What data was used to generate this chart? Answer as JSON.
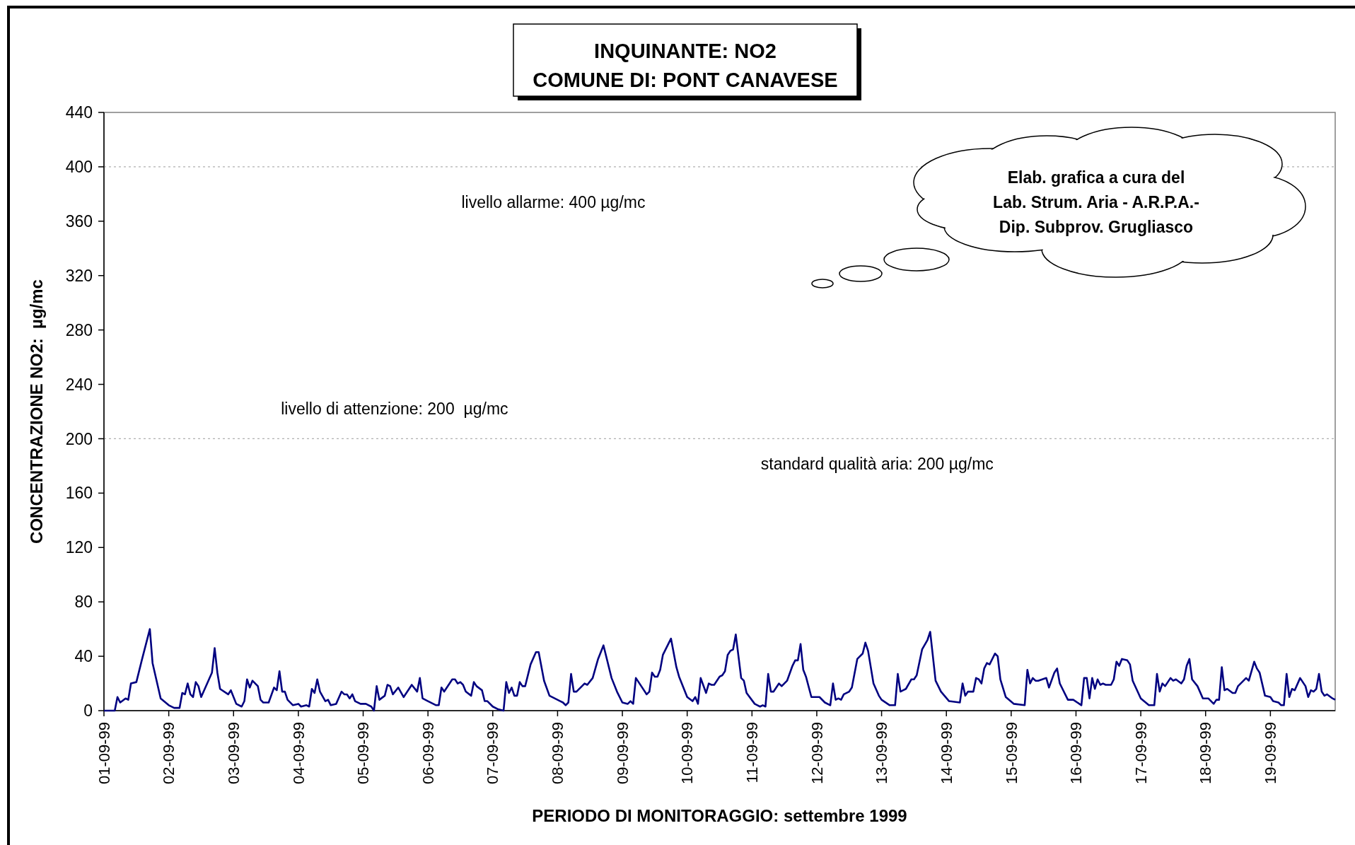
{
  "chart_data": {
    "type": "line",
    "title": "INQUINANTE: NO2\nCOMUNE DI: PONT CANAVESE",
    "xlabel": "PERIODO DI MONITORAGGIO: settembre 1999",
    "ylabel": "CONCENTRAZIONE NO2:  µg/mc",
    "xlim": [
      "1999-09-01",
      "1999-09-20"
    ],
    "ylim": [
      0,
      440
    ],
    "yticks": [
      0,
      40,
      80,
      120,
      160,
      200,
      240,
      280,
      320,
      360,
      400,
      440
    ],
    "xticks": [
      {
        "value": "1999-09-01",
        "label": "01-09-99"
      },
      {
        "value": "1999-09-02",
        "label": "02-09-99"
      },
      {
        "value": "1999-09-03",
        "label": "03-09-99"
      },
      {
        "value": "1999-09-04",
        "label": "04-09-99"
      },
      {
        "value": "1999-09-05",
        "label": "05-09-99"
      },
      {
        "value": "1999-09-06",
        "label": "06-09-99"
      },
      {
        "value": "1999-09-07",
        "label": "07-09-99"
      },
      {
        "value": "1999-09-08",
        "label": "08-09-99"
      },
      {
        "value": "1999-09-09",
        "label": "09-09-99"
      },
      {
        "value": "1999-09-10",
        "label": "10-09-99"
      },
      {
        "value": "1999-09-11",
        "label": "11-09-99"
      },
      {
        "value": "1999-09-12",
        "label": "12-09-99"
      },
      {
        "value": "1999-09-13",
        "label": "13-09-99"
      },
      {
        "value": "1999-09-14",
        "label": "14-09-99"
      },
      {
        "value": "1999-09-15",
        "label": "15-09-99"
      },
      {
        "value": "1999-09-16",
        "label": "16-09-99"
      },
      {
        "value": "1999-09-17",
        "label": "17-09-99"
      },
      {
        "value": "1999-09-18",
        "label": "18-09-99"
      },
      {
        "value": "1999-09-19",
        "label": "19-09-99"
      }
    ],
    "ref_lines": [
      {
        "axis": "y",
        "value": 400,
        "label": "livello allarme: 400 µg/mc",
        "color": "#b0b0b0",
        "line_style": "dotted"
      },
      {
        "axis": "y",
        "value": 200,
        "label": "livello di attenzione: 200  µg/mc",
        "color": "#b0b0b0",
        "line_style": "dotted"
      }
    ],
    "annotations": [
      "Elab. grafica a cura del\nLab. Strum. Aria - A.R.P.A.-\nDip. Subprov. Grugliasco",
      {
        "text": "standard qualità aria: 200 µg/mc",
        "y": 200
      }
    ],
    "series": [
      {
        "color": "#000080",
        "x": [
          "1999-09-01T00:00",
          "1999-09-01T04:00",
          "1999-09-01T05:00",
          "1999-09-01T06:00",
          "1999-09-01T08:00",
          "1999-09-01T09:00",
          "1999-09-01T10:00",
          "1999-09-01T12:00",
          "1999-09-01T14:00",
          "1999-09-01T17:00",
          "1999-09-01T18:00",
          "1999-09-01T21:00",
          "1999-09-02T00:00",
          "1999-09-02T02:00",
          "1999-09-02T04:00",
          "1999-09-02T05:00",
          "1999-09-02T06:00",
          "1999-09-02T07:00",
          "1999-09-02T08:00",
          "1999-09-02T09:00",
          "1999-09-02T10:00",
          "1999-09-02T11:00",
          "1999-09-02T12:00",
          "1999-09-02T16:00",
          "1999-09-02T17:00",
          "1999-09-02T18:00",
          "1999-09-02T19:00",
          "1999-09-02T22:00",
          "1999-09-02T23:00",
          "1999-09-03T01:00",
          "1999-09-03T03:00",
          "1999-09-03T04:00",
          "1999-09-03T05:00",
          "1999-09-03T06:00",
          "1999-09-03T07:00",
          "1999-09-03T09:00",
          "1999-09-03T10:00",
          "1999-09-03T11:00",
          "1999-09-03T13:00",
          "1999-09-03T15:00",
          "1999-09-03T16:00",
          "1999-09-03T17:00",
          "1999-09-03T18:00",
          "1999-09-03T19:00",
          "1999-09-03T20:00",
          "1999-09-03T22:00",
          "1999-09-04T00:00",
          "1999-09-04T01:00",
          "1999-09-04T03:00",
          "1999-09-04T04:00",
          "1999-09-04T05:00",
          "1999-09-04T06:00",
          "1999-09-04T07:00",
          "1999-09-04T08:00",
          "1999-09-04T10:00",
          "1999-09-04T11:00",
          "1999-09-04T12:00",
          "1999-09-04T14:00",
          "1999-09-04T16:00",
          "1999-09-04T17:00",
          "1999-09-04T18:00",
          "1999-09-04T19:00",
          "1999-09-04T20:00",
          "1999-09-04T21:00",
          "1999-09-04T23:00",
          "1999-09-05T01:00",
          "1999-09-05T03:00",
          "1999-09-05T04:00",
          "1999-09-05T05:00",
          "1999-09-05T06:00",
          "1999-09-05T08:00",
          "1999-09-05T09:00",
          "1999-09-05T10:00",
          "1999-09-05T11:00",
          "1999-09-05T13:00",
          "1999-09-05T15:00",
          "1999-09-05T18:00",
          "1999-09-05T20:00",
          "1999-09-05T21:00",
          "1999-09-05T22:00",
          "1999-09-06T00:00",
          "1999-09-06T03:00",
          "1999-09-06T04:00",
          "1999-09-06T05:00",
          "1999-09-06T06:00",
          "1999-09-06T09:00",
          "1999-09-06T10:00",
          "1999-09-06T11:00",
          "1999-09-06T12:00",
          "1999-09-06T13:00",
          "1999-09-06T14:00",
          "1999-09-06T16:00",
          "1999-09-06T17:00",
          "1999-09-06T18:00",
          "1999-09-06T20:00",
          "1999-09-06T21:00",
          "1999-09-06T22:00",
          "1999-09-07T00:00",
          "1999-09-07T02:00",
          "1999-09-07T04:00",
          "1999-09-07T05:00",
          "1999-09-07T06:00",
          "1999-09-07T07:00",
          "1999-09-07T08:00",
          "1999-09-07T09:00",
          "1999-09-07T10:00",
          "1999-09-07T11:00",
          "1999-09-07T12:00",
          "1999-09-07T14:00",
          "1999-09-07T16:00",
          "1999-09-07T17:00",
          "1999-09-07T19:00",
          "1999-09-07T21:00",
          "1999-09-08T01:00",
          "1999-09-08T02:00",
          "1999-09-08T03:00",
          "1999-09-08T04:00",
          "1999-09-08T05:00",
          "1999-09-08T06:00",
          "1999-09-08T07:00",
          "1999-09-08T10:00",
          "1999-09-08T11:00",
          "1999-09-08T13:00",
          "1999-09-08T14:00",
          "1999-09-08T15:00",
          "1999-09-08T17:00",
          "1999-09-08T20:00",
          "1999-09-08T22:00",
          "1999-09-09T00:00",
          "1999-09-09T02:00",
          "1999-09-09T03:00",
          "1999-09-09T04:00",
          "1999-09-09T05:00",
          "1999-09-09T07:00",
          "1999-09-09T09:00",
          "1999-09-09T10:00",
          "1999-09-09T11:00",
          "1999-09-09T12:00",
          "1999-09-09T13:00",
          "1999-09-09T14:00",
          "1999-09-09T15:00",
          "1999-09-09T18:00",
          "1999-09-09T20:00",
          "1999-09-09T21:00",
          "1999-09-10T00:00",
          "1999-09-10T02:00",
          "1999-09-10T03:00",
          "1999-09-10T04:00",
          "1999-09-10T05:00",
          "1999-09-10T07:00",
          "1999-09-10T08:00",
          "1999-09-10T09:00",
          "1999-09-10T10:00",
          "1999-09-10T12:00",
          "1999-09-10T13:00",
          "1999-09-10T14:00",
          "1999-09-10T15:00",
          "1999-09-10T16:00",
          "1999-09-10T17:00",
          "1999-09-10T18:00",
          "1999-09-10T20:00",
          "1999-09-10T21:00",
          "1999-09-10T22:00",
          "1999-09-11T01:00",
          "1999-09-11T02:00",
          "1999-09-11T03:00",
          "1999-09-11T04:00",
          "1999-09-11T05:00",
          "1999-09-11T06:00",
          "1999-09-11T07:00",
          "1999-09-11T08:00",
          "1999-09-11T10:00",
          "1999-09-11T11:00",
          "1999-09-11T13:00",
          "1999-09-11T15:00",
          "1999-09-11T16:00",
          "1999-09-11T17:00",
          "1999-09-11T18:00",
          "1999-09-11T19:00",
          "1999-09-11T20:00",
          "1999-09-11T22:00",
          "1999-09-12T01:00",
          "1999-09-12T03:00",
          "1999-09-12T05:00",
          "1999-09-12T06:00",
          "1999-09-12T07:00",
          "1999-09-12T08:00",
          "1999-09-12T09:00",
          "1999-09-12T10:00",
          "1999-09-12T12:00",
          "1999-09-12T13:00",
          "1999-09-12T15:00",
          "1999-09-12T17:00",
          "1999-09-12T18:00",
          "1999-09-12T19:00",
          "1999-09-12T21:00",
          "1999-09-12T23:00",
          "1999-09-13T00:00",
          "1999-09-13T03:00",
          "1999-09-13T05:00",
          "1999-09-13T06:00",
          "1999-09-13T07:00",
          "1999-09-13T08:00",
          "1999-09-13T09:00",
          "1999-09-13T11:00",
          "1999-09-13T12:00",
          "1999-09-13T13:00",
          "1999-09-13T15:00",
          "1999-09-13T17:00",
          "1999-09-13T18:00",
          "1999-09-13T20:00",
          "1999-09-13T22:00",
          "1999-09-14T01:00",
          "1999-09-14T05:00",
          "1999-09-14T06:00",
          "1999-09-14T07:00",
          "1999-09-14T08:00",
          "1999-09-14T10:00",
          "1999-09-14T11:00",
          "1999-09-14T12:00",
          "1999-09-14T13:00",
          "1999-09-14T14:00",
          "1999-09-14T15:00",
          "1999-09-14T16:00",
          "1999-09-14T18:00",
          "1999-09-14T19:00",
          "1999-09-14T20:00",
          "1999-09-14T22:00",
          "1999-09-15T01:00",
          "1999-09-15T05:00",
          "1999-09-15T06:00",
          "1999-09-15T07:00",
          "1999-09-15T08:00",
          "1999-09-15T09:00",
          "1999-09-15T10:00",
          "1999-09-15T13:00",
          "1999-09-15T14:00",
          "1999-09-15T16:00",
          "1999-09-15T17:00",
          "1999-09-15T18:00",
          "1999-09-15T21:00",
          "1999-09-15T23:00",
          "1999-09-16T02:00",
          "1999-09-16T03:00",
          "1999-09-16T04:00",
          "1999-09-16T05:00",
          "1999-09-16T06:00",
          "1999-09-16T07:00",
          "1999-09-16T08:00",
          "1999-09-16T09:00",
          "1999-09-16T10:00",
          "1999-09-16T11:00",
          "1999-09-16T13:00",
          "1999-09-16T14:00",
          "1999-09-16T15:00",
          "1999-09-16T16:00",
          "1999-09-16T17:00",
          "1999-09-16T19:00",
          "1999-09-16T20:00",
          "1999-09-16T21:00",
          "1999-09-17T00:00",
          "1999-09-17T03:00",
          "1999-09-17T05:00",
          "1999-09-17T06:00",
          "1999-09-17T07:00",
          "1999-09-17T08:00",
          "1999-09-17T09:00",
          "1999-09-17T11:00",
          "1999-09-17T12:00",
          "1999-09-17T13:00",
          "1999-09-17T15:00",
          "1999-09-17T16:00",
          "1999-09-17T17:00",
          "1999-09-17T18:00",
          "1999-09-17T19:00",
          "1999-09-17T21:00",
          "1999-09-17T23:00",
          "1999-09-18T01:00",
          "1999-09-18T03:00",
          "1999-09-18T04:00",
          "1999-09-18T05:00",
          "1999-09-18T06:00",
          "1999-09-18T07:00",
          "1999-09-18T08:00",
          "1999-09-18T10:00",
          "1999-09-18T11:00",
          "1999-09-18T12:00",
          "1999-09-18T15:00",
          "1999-09-18T16:00",
          "1999-09-18T18:00",
          "1999-09-18T19:00",
          "1999-09-18T20:00",
          "1999-09-18T22:00",
          "1999-09-19T00:00",
          "1999-09-19T01:00",
          "1999-09-19T03:00",
          "1999-09-19T04:00",
          "1999-09-19T05:00",
          "1999-09-19T06:00",
          "1999-09-19T07:00",
          "1999-09-19T08:00",
          "1999-09-19T09:00",
          "1999-09-19T11:00",
          "1999-09-19T13:00",
          "1999-09-19T14:00",
          "1999-09-19T15:00",
          "1999-09-19T16:00",
          "1999-09-19T17:00",
          "1999-09-19T18:00",
          "1999-09-19T19:00",
          "1999-09-19T20:00",
          "1999-09-19T21:00",
          "1999-09-19T23:00",
          "1999-09-20T00:00"
        ],
        "values": [
          0,
          0,
          10,
          6,
          9,
          8,
          20,
          21,
          37,
          60,
          35,
          9,
          4,
          2,
          2,
          13,
          12,
          20,
          12,
          10,
          21,
          18,
          10,
          28,
          46,
          28,
          16,
          12,
          15,
          5,
          3,
          7,
          23,
          17,
          22,
          18,
          8,
          6,
          6,
          17,
          15,
          29,
          14,
          14,
          8,
          4,
          5,
          3,
          4,
          3,
          16,
          13,
          23,
          14,
          7,
          8,
          4,
          5,
          14,
          12,
          12,
          9,
          12,
          7,
          5,
          5,
          3,
          0,
          18,
          8,
          11,
          19,
          18,
          12,
          17,
          10,
          19,
          14,
          24,
          9,
          7,
          4,
          4,
          17,
          14,
          23,
          23,
          20,
          21,
          19,
          14,
          11,
          21,
          18,
          15,
          7,
          7,
          3,
          1,
          0,
          21,
          13,
          17,
          11,
          11,
          21,
          18,
          18,
          34,
          43,
          43,
          22,
          11,
          7,
          6,
          4,
          6,
          27,
          14,
          14,
          20,
          19,
          24,
          31,
          38,
          48,
          24,
          14,
          6,
          5,
          7,
          5,
          24,
          18,
          12,
          14,
          28,
          25,
          25,
          30,
          41,
          53,
          32,
          25,
          10,
          7,
          10,
          5,
          24,
          13,
          20,
          19,
          19,
          25,
          26,
          29,
          41,
          44,
          45,
          56,
          24,
          22,
          13,
          5,
          4,
          3,
          4,
          3,
          27,
          14,
          14,
          20,
          18,
          22,
          33,
          37,
          37,
          49,
          30,
          25,
          10,
          10,
          6,
          4,
          20,
          8,
          9,
          8,
          12,
          14,
          17,
          38,
          42,
          50,
          44,
          20,
          11,
          8,
          4,
          4,
          27,
          14,
          15,
          16,
          23,
          23,
          26,
          45,
          52,
          58,
          22,
          14,
          7,
          6,
          20,
          11,
          14,
          14,
          24,
          23,
          20,
          31,
          35,
          34,
          42,
          40,
          23,
          10,
          5,
          4,
          30,
          20,
          24,
          22,
          22,
          24,
          17,
          28,
          31,
          20,
          8,
          8,
          4,
          24,
          24,
          9,
          24,
          16,
          23,
          19,
          20,
          19,
          19,
          23,
          36,
          33,
          38,
          37,
          34,
          22,
          9,
          4,
          4,
          27,
          14,
          20,
          18,
          24,
          22,
          23,
          20,
          23,
          33,
          38,
          23,
          18,
          9,
          9,
          5,
          8,
          8,
          32,
          15,
          16,
          13,
          13,
          18,
          24,
          22,
          36,
          31,
          28,
          11,
          10,
          7,
          6,
          4,
          4,
          27,
          10,
          16,
          15,
          24,
          18,
          10,
          15,
          14,
          16,
          27,
          14,
          11,
          12,
          9,
          8
        ]
      }
    ]
  }
}
